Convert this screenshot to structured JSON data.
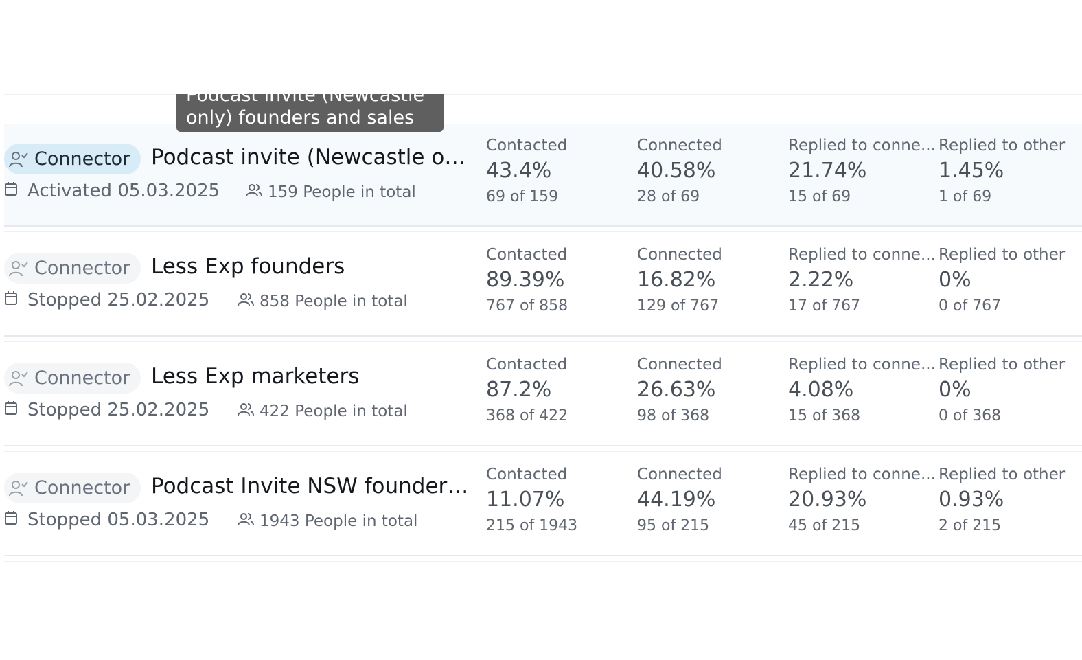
{
  "tooltip": {
    "line1": "Podcast invite (Newcastle",
    "line2": "only) founders and sales"
  },
  "campaigns": [
    {
      "type": "Connector",
      "name": "Podcast invite (Newcastle onl...",
      "status": "Activated 05.03.2025",
      "people": "159 People in total",
      "metrics": [
        {
          "label": "Contacted",
          "value": "43.4%",
          "sub": "69 of 159"
        },
        {
          "label": "Connected",
          "value": "40.58%",
          "sub": "28 of 69"
        },
        {
          "label": "Replied to conne...",
          "value": "21.74%",
          "sub": "15 of 69"
        },
        {
          "label": "Replied to other",
          "value": "1.45%",
          "sub": "1 of 69"
        }
      ]
    },
    {
      "type": "Connector",
      "name": "Less Exp founders",
      "status": "Stopped 25.02.2025",
      "people": "858 People in total",
      "metrics": [
        {
          "label": "Contacted",
          "value": "89.39%",
          "sub": "767 of 858"
        },
        {
          "label": "Connected",
          "value": "16.82%",
          "sub": "129 of 767"
        },
        {
          "label": "Replied to conne...",
          "value": "2.22%",
          "sub": "17 of 767"
        },
        {
          "label": "Replied to other",
          "value": "0%",
          "sub": "0 of 767"
        }
      ]
    },
    {
      "type": "Connector",
      "name": "Less Exp marketers",
      "status": "Stopped 25.02.2025",
      "people": "422 People in total",
      "metrics": [
        {
          "label": "Contacted",
          "value": "87.2%",
          "sub": "368 of 422"
        },
        {
          "label": "Connected",
          "value": "26.63%",
          "sub": "98 of 368"
        },
        {
          "label": "Replied to conne...",
          "value": "4.08%",
          "sub": "15 of 368"
        },
        {
          "label": "Replied to other",
          "value": "0%",
          "sub": "0 of 368"
        }
      ]
    },
    {
      "type": "Connector",
      "name": "Podcast Invite NSW founders ...",
      "status": "Stopped 05.03.2025",
      "people": "1943 People in total",
      "metrics": [
        {
          "label": "Contacted",
          "value": "11.07%",
          "sub": "215 of 1943"
        },
        {
          "label": "Connected",
          "value": "44.19%",
          "sub": "95 of 215"
        },
        {
          "label": "Replied to conne...",
          "value": "20.93%",
          "sub": "45 of 215"
        },
        {
          "label": "Replied to other",
          "value": "0.93%",
          "sub": "2 of 215"
        }
      ]
    }
  ]
}
